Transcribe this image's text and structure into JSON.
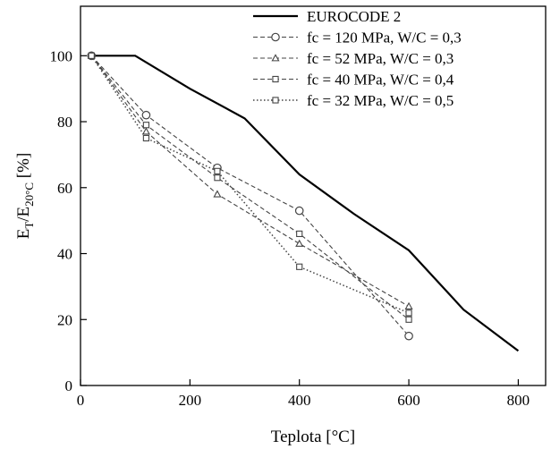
{
  "chart_data": {
    "type": "line",
    "xlabel": "Teplota  [°C]",
    "ylabel_main": "E",
    "ylabel_sub1": "T",
    "ylabel_mid": "/E",
    "ylabel_sub2": "20°C",
    "ylabel_unit": " [%]",
    "xlim": [
      0,
      850
    ],
    "ylim": [
      0,
      115
    ],
    "xticks": [
      0,
      200,
      400,
      600,
      800
    ],
    "yticks": [
      0,
      20,
      40,
      60,
      80,
      100
    ],
    "grid": false,
    "legend_position": "top-right",
    "series": [
      {
        "name": "EUROCODE 2",
        "style": "solid-bold",
        "marker": "none",
        "color": "#000000",
        "x": [
          20,
          100,
          200,
          300,
          400,
          500,
          600,
          700,
          800
        ],
        "y": [
          100,
          100,
          90,
          81,
          64,
          52,
          41,
          23,
          10.5
        ]
      },
      {
        "name": "fc = 120 MPa, W/C = 0,3",
        "style": "dashed",
        "marker": "circle",
        "color": "#444444",
        "x": [
          20,
          120,
          250,
          400,
          600
        ],
        "y": [
          100,
          82,
          66,
          53,
          15
        ]
      },
      {
        "name": "fc = 52 MPa, W/C = 0,3",
        "style": "dashed",
        "marker": "triangle",
        "color": "#444444",
        "x": [
          20,
          120,
          250,
          400,
          600
        ],
        "y": [
          100,
          77,
          58,
          43,
          24
        ]
      },
      {
        "name": "fc = 40 MPa, W/C = 0,4",
        "style": "dashed",
        "marker": "square",
        "color": "#444444",
        "x": [
          20,
          120,
          250,
          400,
          600
        ],
        "y": [
          100,
          79,
          63,
          46,
          20
        ]
      },
      {
        "name": "fc = 32 MPa, W/C = 0,5",
        "style": "dotted",
        "marker": "square",
        "color": "#444444",
        "x": [
          20,
          120,
          250,
          400,
          600
        ],
        "y": [
          100,
          75,
          65,
          36,
          22
        ]
      }
    ]
  }
}
